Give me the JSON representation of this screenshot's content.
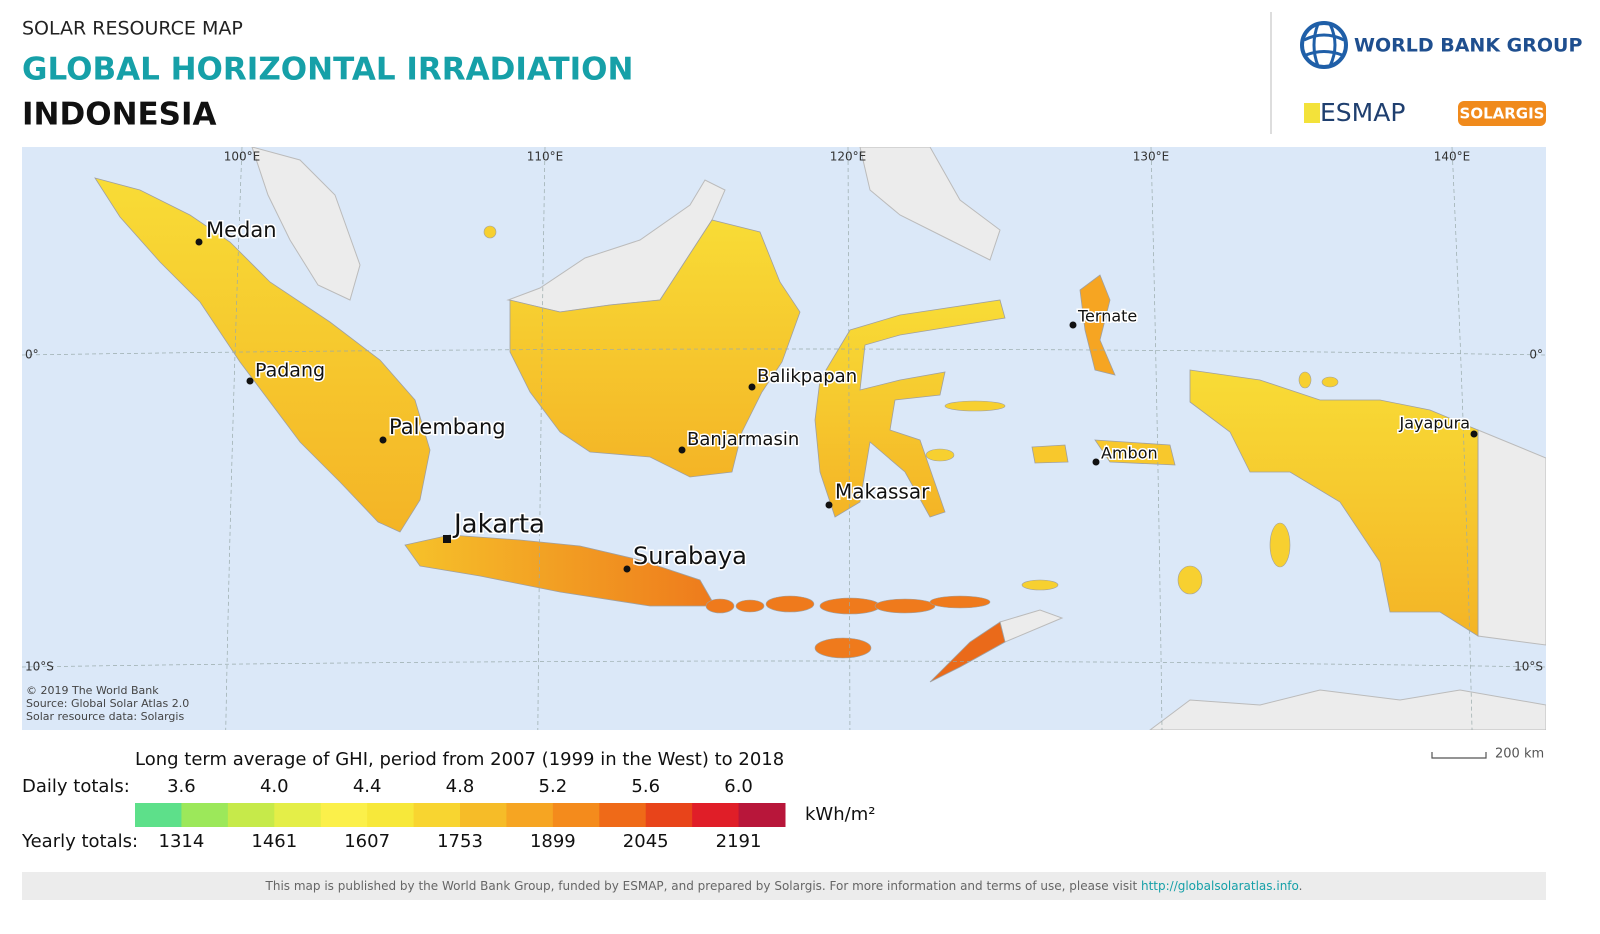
{
  "header": {
    "kicker": "SOLAR RESOURCE MAP",
    "title": "GLOBAL HORIZONTAL IRRADIATION",
    "country": "INDONESIA"
  },
  "logos": {
    "world_bank": "WORLD BANK GROUP",
    "esmap": "ESMAP",
    "solargis": "SOLARGIS"
  },
  "map": {
    "longitudes": [
      "100°E",
      "110°E",
      "120°E",
      "130°E",
      "140°E"
    ],
    "latitudes": [
      "0°",
      "10°S"
    ],
    "cities": [
      "Medan",
      "Padang",
      "Palembang",
      "Jakarta",
      "Surabaya",
      "Balikpapan",
      "Banjarmasin",
      "Makassar",
      "Ternate",
      "Ambon",
      "Jayapura"
    ],
    "credits": [
      "© 2019 The World Bank",
      "Source: Global Solar Atlas 2.0",
      "Solar resource data: Solargis"
    ],
    "scale": "200 km"
  },
  "legend": {
    "caption": "Long term average of GHI, period from 2007 (1999 in the West) to 2018",
    "daily_label": "Daily totals:",
    "daily": [
      "3.6",
      "4.0",
      "4.4",
      "4.8",
      "5.2",
      "5.6",
      "6.0"
    ],
    "yearly_label": "Yearly totals:",
    "yearly": [
      "1314",
      "1461",
      "1607",
      "1753",
      "1899",
      "2045",
      "2191"
    ],
    "unit": "kWh/m²",
    "colors": [
      "#5de08a",
      "#9ce85a",
      "#c6ea4a",
      "#e4ee48",
      "#fbf04a",
      "#f7e83a",
      "#f8d530",
      "#f6bc28",
      "#f6a522",
      "#f48b1c",
      "#ef6a18",
      "#e8441a",
      "#e01e28",
      "#b8163a"
    ]
  },
  "footer": {
    "text": "This map is published by the World Bank Group, funded by ESMAP, and prepared by Solargis. For more information and terms of use, please visit ",
    "link": "http://globalsolaratlas.info",
    "end": "."
  }
}
